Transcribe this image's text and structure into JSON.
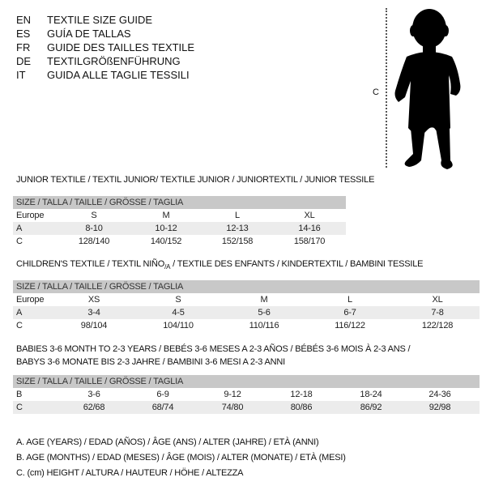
{
  "header": {
    "languages": [
      {
        "code": "EN",
        "text": "TEXTILE SIZE GUIDE"
      },
      {
        "code": "ES",
        "text": "GUÍA DE TALLAS"
      },
      {
        "code": "FR",
        "text": "GUIDE DES TAILLES TEXTILE"
      },
      {
        "code": "DE",
        "text": "TEXTILGRÖßENFÜHRUNG"
      },
      {
        "code": "IT",
        "text": "GUIDA ALLE TAGLIE TESSILI"
      }
    ]
  },
  "figure": {
    "measure_label": "C",
    "icon": "child-silhouette"
  },
  "colors": {
    "header_bg": "#c8c8c8",
    "shade_row": "#ececec"
  },
  "junior": {
    "title": "JUNIOR TEXTILE / TEXTIL JUNIOR/ TEXTILE JUNIOR / JUNIORTEXTIL / JUNIOR TESSILE",
    "header": "SIZE / TALLA / TAILLE / GRÖSSE / TAGLIA",
    "rows": [
      {
        "label": "Europe",
        "values": [
          "S",
          "M",
          "L",
          "XL"
        ]
      },
      {
        "label": "A",
        "values": [
          "8-10",
          "10-12",
          "12-13",
          "14-16"
        ]
      },
      {
        "label": "C",
        "values": [
          "128/140",
          "140/152",
          "152/158",
          "158/170"
        ]
      }
    ]
  },
  "children": {
    "title_pre": "CHILDREN'S TEXTILE / TEXTIL NIÑO",
    "title_sub": "/A",
    "title_post": " / TEXTILE DES ENFANTS / KINDERTEXTIL / BAMBINI TESSILE",
    "header": "SIZE / TALLA / TAILLE / GRÖSSE / TAGLIA",
    "rows": [
      {
        "label": "Europe",
        "values": [
          "XS",
          "S",
          "M",
          "L",
          "XL"
        ]
      },
      {
        "label": "A",
        "values": [
          "3-4",
          "4-5",
          "5-6",
          "6-7",
          "7-8"
        ]
      },
      {
        "label": "C",
        "values": [
          "98/104",
          "104/110",
          "110/116",
          "116/122",
          "122/128"
        ]
      }
    ]
  },
  "babies": {
    "title_line1": "BABIES 3-6 MONTH TO 2-3 YEARS / BEBÉS 3-6 MESES A 2-3 AÑOS / BÉBÉS 3-6 MOIS À 2-3 ANS /",
    "title_line2": "BABYS 3-6 MONATE BIS 2-3 JAHRE / BAMBINI 3-6 MESI A 2-3 ANNI",
    "header": "SIZE / TALLA / TAILLE / GRÖSSE / TAGLIA",
    "rows": [
      {
        "label": "B",
        "values": [
          "3-6",
          "6-9",
          "9-12",
          "12-18",
          "18-24",
          "24-36"
        ]
      },
      {
        "label": "C",
        "values": [
          "62/68",
          "68/74",
          "74/80",
          "80/86",
          "86/92",
          "92/98"
        ]
      }
    ]
  },
  "legend": [
    "A. AGE (YEARS) / EDAD (AÑOS) / ÂGE (ANS) / ALTER (JAHRE) / ETÀ (ANNI)",
    "B. AGE (MONTHS) / EDAD (MESES) / ÂGE (MOIS) / ALTER (MONATE) / ETÀ (MESI)",
    "C. (cm) HEIGHT / ALTURA / HAUTEUR / HÖHE / ALTEZZA"
  ]
}
